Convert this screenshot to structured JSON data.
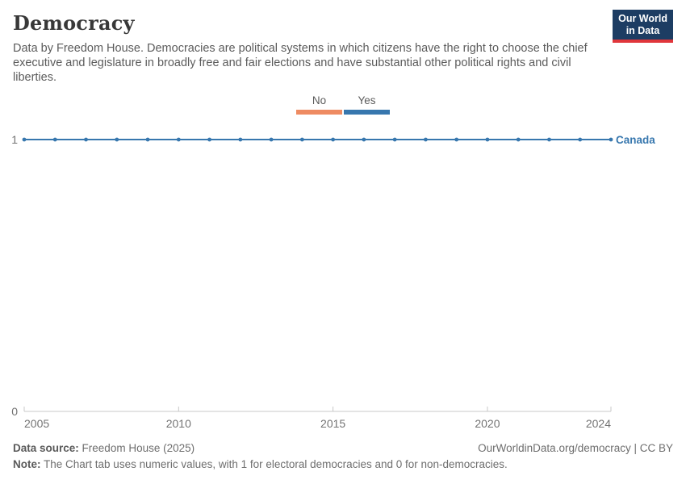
{
  "header": {
    "title": "Democracy",
    "subtitle": "Data by Freedom House. Democracies are political systems in which citizens have the right to choose the chief executive and legislature in broadly free and fair elections and have substantial other political rights and civil liberties.",
    "logo": {
      "line1": "Our World",
      "line2": "in Data",
      "bg_color": "#1d3d63",
      "accent_color": "#e0363b"
    }
  },
  "chart_data": {
    "type": "line",
    "title": "Democracy",
    "x": [
      2005,
      2006,
      2007,
      2008,
      2009,
      2010,
      2011,
      2012,
      2013,
      2014,
      2015,
      2016,
      2017,
      2018,
      2019,
      2020,
      2021,
      2022,
      2023,
      2024
    ],
    "series": [
      {
        "name": "Canada",
        "values": [
          1,
          1,
          1,
          1,
          1,
          1,
          1,
          1,
          1,
          1,
          1,
          1,
          1,
          1,
          1,
          1,
          1,
          1,
          1,
          1
        ],
        "color": "#3777ae"
      }
    ],
    "legend": [
      {
        "label": "No",
        "color": "#ee8b62"
      },
      {
        "label": "Yes",
        "color": "#3777ae"
      }
    ],
    "legend_position": "top-center",
    "xlabel": "",
    "ylabel": "",
    "ylim": [
      0,
      1
    ],
    "yticks": [
      0,
      1
    ],
    "xticks": [
      2005,
      2010,
      2015,
      2020,
      2024
    ],
    "grid": false,
    "axis_color": "#c8c8c8",
    "tick_label_color": "#737373"
  },
  "footer": {
    "data_source_label": "Data source:",
    "data_source": "Freedom House (2025)",
    "link": "OurWorldinData.org/democracy | CC BY",
    "note_label": "Note:",
    "note": "The Chart tab uses numeric values, with 1 for electoral democracies and 0 for non-democracies."
  }
}
